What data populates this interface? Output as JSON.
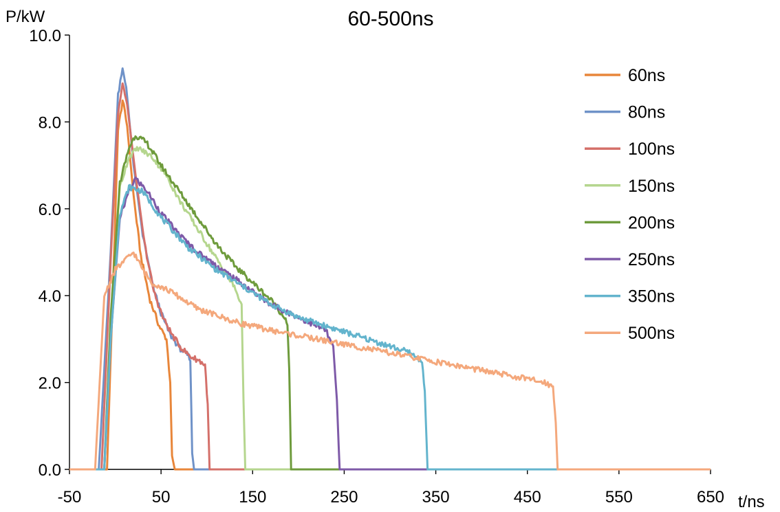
{
  "chart_data": {
    "type": "line",
    "title": "60-500ns",
    "xlabel": "t/ns",
    "ylabel": "P/kW",
    "xlim": [
      -50,
      650
    ],
    "ylim": [
      0,
      10
    ],
    "xticks": [
      "-50",
      "50",
      "150",
      "250",
      "350",
      "450",
      "550",
      "650"
    ],
    "yticks": [
      "0.0",
      "2.0",
      "4.0",
      "6.0",
      "8.0",
      "10.0"
    ],
    "grid": false,
    "legend_position": "top-right",
    "series": [
      {
        "name": "60ns",
        "color": "#E8863A",
        "x": [
          -50,
          -9,
          -2,
          3,
          8,
          13,
          20,
          28,
          38,
          48,
          56,
          60,
          62,
          65,
          650
        ],
        "y": [
          0,
          0,
          4.5,
          7.8,
          8.5,
          7.9,
          6.3,
          4.9,
          3.9,
          3.3,
          3.0,
          2.0,
          0.3,
          0,
          0
        ]
      },
      {
        "name": "80ns",
        "color": "#6F92C8",
        "x": [
          -50,
          -18,
          -5,
          3,
          8,
          12,
          20,
          30,
          40,
          50,
          60,
          70,
          80,
          82,
          84,
          86,
          650
        ],
        "y": [
          0,
          0,
          5.0,
          8.6,
          9.2,
          8.8,
          7.0,
          5.4,
          4.3,
          3.6,
          3.1,
          2.8,
          2.6,
          2.5,
          0.4,
          0,
          0
        ]
      },
      {
        "name": "100ns",
        "color": "#D4706A",
        "x": [
          -50,
          -15,
          -5,
          3,
          8,
          13,
          22,
          32,
          42,
          52,
          62,
          72,
          82,
          92,
          98,
          101,
          103,
          650
        ],
        "y": [
          0,
          0,
          4.8,
          8.2,
          8.9,
          8.4,
          6.8,
          5.2,
          4.1,
          3.5,
          3.1,
          2.8,
          2.6,
          2.5,
          2.4,
          1.5,
          0,
          0
        ]
      },
      {
        "name": "150ns",
        "color": "#B5D68E",
        "x": [
          -50,
          -12,
          -5,
          5,
          15,
          25,
          40,
          55,
          70,
          85,
          100,
          115,
          130,
          138,
          140,
          142,
          650
        ],
        "y": [
          0,
          0,
          3.5,
          6.5,
          7.2,
          7.4,
          7.2,
          6.8,
          6.2,
          5.7,
          5.2,
          4.7,
          4.2,
          3.8,
          1.6,
          0,
          0
        ]
      },
      {
        "name": "200ns",
        "color": "#6E9B3C",
        "x": [
          -50,
          -12,
          -5,
          5,
          15,
          22,
          35,
          50,
          70,
          90,
          110,
          130,
          150,
          170,
          185,
          188,
          190,
          192,
          650
        ],
        "y": [
          0,
          0,
          3.5,
          6.6,
          7.4,
          7.7,
          7.5,
          7.0,
          6.4,
          5.8,
          5.2,
          4.7,
          4.3,
          3.9,
          3.5,
          3.3,
          2.3,
          0,
          0
        ]
      },
      {
        "name": "250ns",
        "color": "#7E5AA8",
        "x": [
          -50,
          -12,
          -5,
          5,
          15,
          22,
          35,
          50,
          70,
          90,
          110,
          130,
          150,
          170,
          190,
          210,
          230,
          238,
          242,
          245,
          650
        ],
        "y": [
          0,
          0,
          3.0,
          5.8,
          6.4,
          6.7,
          6.4,
          5.9,
          5.4,
          5.0,
          4.7,
          4.4,
          4.1,
          3.8,
          3.6,
          3.4,
          3.2,
          2.8,
          1.6,
          0,
          0
        ]
      },
      {
        "name": "350ns",
        "color": "#63B4CD",
        "x": [
          -50,
          -12,
          -5,
          5,
          15,
          30,
          50,
          80,
          110,
          140,
          170,
          200,
          230,
          260,
          290,
          320,
          335,
          338,
          341,
          650
        ],
        "y": [
          0,
          0,
          3.0,
          5.9,
          6.5,
          6.4,
          5.8,
          5.1,
          4.6,
          4.2,
          3.8,
          3.5,
          3.3,
          3.1,
          2.9,
          2.7,
          2.5,
          1.8,
          0,
          0
        ]
      },
      {
        "name": "500ns",
        "color": "#F4A87C",
        "x": [
          -50,
          -22,
          -12,
          0,
          10,
          20,
          30,
          40,
          60,
          90,
          130,
          170,
          220,
          270,
          320,
          370,
          420,
          470,
          478,
          481,
          483,
          650
        ],
        "y": [
          0,
          0,
          4.0,
          4.6,
          4.8,
          5.0,
          4.6,
          4.3,
          4.1,
          3.7,
          3.4,
          3.2,
          3.0,
          2.8,
          2.6,
          2.4,
          2.2,
          2.0,
          1.9,
          1.1,
          0,
          0
        ]
      }
    ]
  }
}
